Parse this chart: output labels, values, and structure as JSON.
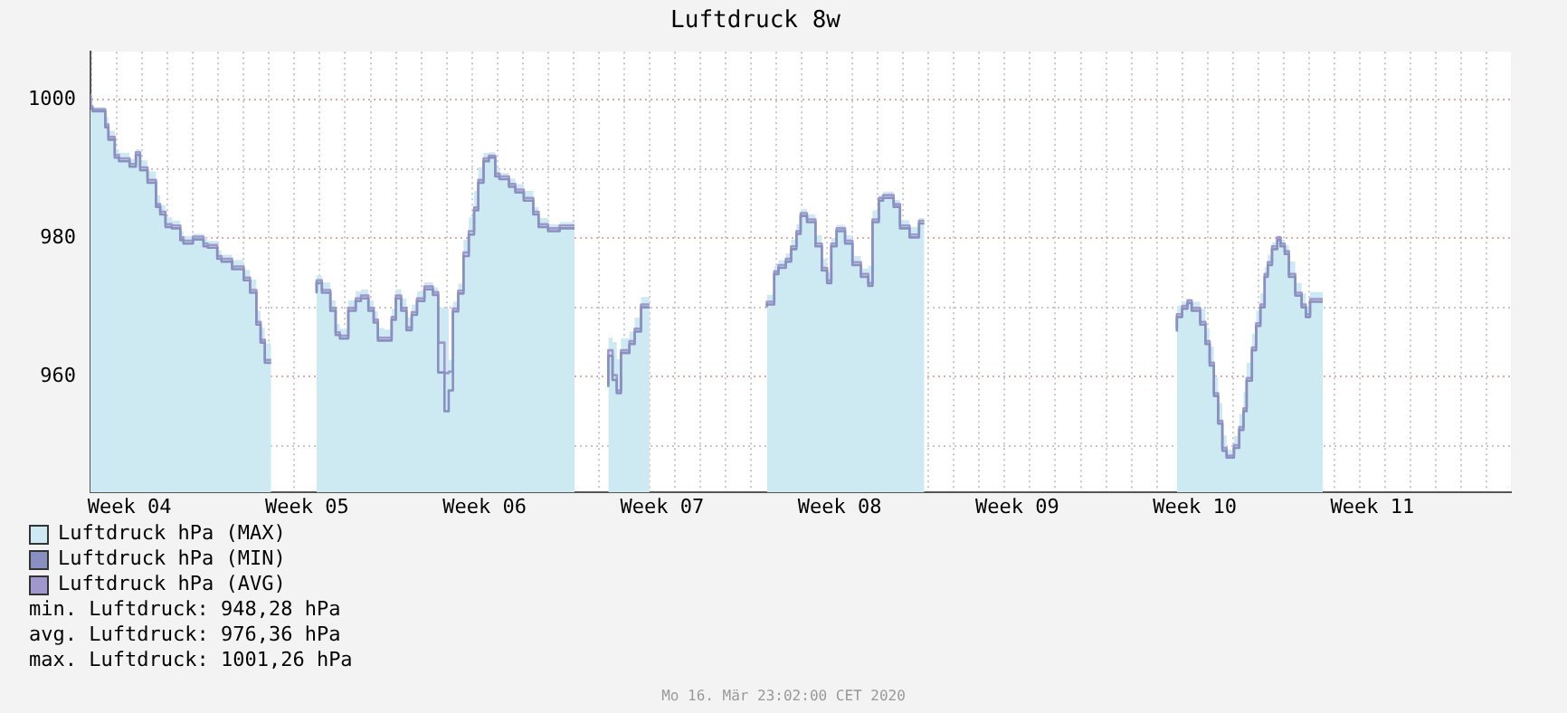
{
  "chart_data": {
    "type": "step",
    "title": "Luftdruck 8w",
    "x": [
      "2020-01-20T23:02",
      "2020-01-21T01:00",
      "2020-01-21T13:00",
      "2020-01-21T16:00",
      "2020-01-21T22:00",
      "2020-01-22T02:00",
      "2020-01-22T12:00",
      "2020-01-22T18:00",
      "2020-01-22T22:00",
      "2020-01-23T05:00",
      "2020-01-23T13:00",
      "2020-01-23T17:00",
      "2020-01-23T22:00",
      "2020-01-24T04:00",
      "2020-01-24T12:00",
      "2020-01-24T15:00",
      "2020-01-25T00:00",
      "2020-01-25T10:00",
      "2020-01-25T14:00",
      "2020-01-25T23:00",
      "2020-01-26T03:00",
      "2020-01-26T13:00",
      "2020-01-27T00:00",
      "2020-01-27T06:00",
      "2020-01-27T12:00",
      "2020-01-27T16:00",
      "2020-01-27T20:00",
      "2020-01-27T23:00",
      "2020-01-28T02:00",
      "2020-01-28T11:00",
      "2020-01-29T21:00",
      "2020-01-30T02:00",
      "2020-01-30T10:00",
      "2020-01-30T15:00",
      "2020-01-30T19:00",
      "2020-01-31T03:00",
      "2020-01-31T10:00",
      "2020-01-31T15:00",
      "2020-01-31T22:00",
      "2020-02-01T03:00",
      "2020-02-01T07:00",
      "2020-02-01T13:00",
      "2020-02-01T20:00",
      "2020-02-02T00:00",
      "2020-02-02T05:00",
      "2020-02-02T10:00",
      "2020-02-02T15:00",
      "2020-02-02T20:00",
      "2020-02-03T03:00",
      "2020-02-03T11:00",
      "2020-02-03T16:00",
      "2020-02-03T22:00",
      "2020-02-04T02:00",
      "2020-02-04T06:00",
      "2020-02-04T11:00",
      "2020-02-04T16:00",
      "2020-02-04T21:00",
      "2020-02-05T02:00",
      "2020-02-05T06:00",
      "2020-02-05T11:00",
      "2020-02-05T16:00",
      "2020-02-05T22:00",
      "2020-02-06T02:00",
      "2020-02-06T11:00",
      "2020-02-06T17:00",
      "2020-02-07T01:00",
      "2020-02-07T10:00",
      "2020-02-07T15:00",
      "2020-02-08T00:00",
      "2020-02-08T11:00",
      "2020-02-08T23:00",
      "2020-02-09T01:00",
      "2020-02-09T11:00",
      "2020-02-10T09:00",
      "2020-02-10T13:00",
      "2020-02-10T17:00",
      "2020-02-10T21:00",
      "2020-02-11T05:00",
      "2020-02-11T10:00",
      "2020-02-11T16:00",
      "2020-02-11T20:00",
      "2020-02-12T00:00",
      "2020-02-13T23:00",
      "2020-02-16T15:00",
      "2020-02-16T22:00",
      "2020-02-17T02:00",
      "2020-02-17T09:00",
      "2020-02-17T14:00",
      "2020-02-17T19:00",
      "2020-02-17T23:00",
      "2020-02-18T05:00",
      "2020-02-18T13:00",
      "2020-02-18T19:00",
      "2020-02-19T00:00",
      "2020-02-19T04:00",
      "2020-02-19T09:00",
      "2020-02-19T17:00",
      "2020-02-20T00:00",
      "2020-02-20T08:00",
      "2020-02-20T15:00",
      "2020-02-20T19:00",
      "2020-02-21T01:00",
      "2020-02-21T05:00",
      "2020-02-21T15:00",
      "2020-02-21T21:00",
      "2020-02-22T06:00",
      "2020-02-22T15:00",
      "2020-02-22T18:00",
      "2020-02-22T20:00",
      "2020-02-26T23:00",
      "2020-03-03T19:00",
      "2020-03-04T00:00",
      "2020-03-04T05:00",
      "2020-03-04T09:00",
      "2020-03-04T17:00",
      "2020-03-04T22:00",
      "2020-03-05T02:00",
      "2020-03-05T06:00",
      "2020-03-05T10:00",
      "2020-03-05T14:00",
      "2020-03-05T18:00",
      "2020-03-06T01:00",
      "2020-03-06T06:00",
      "2020-03-06T10:00",
      "2020-03-06T13:00",
      "2020-03-06T18:00",
      "2020-03-06T22:00",
      "2020-03-07T02:00",
      "2020-03-07T06:00",
      "2020-03-07T09:00",
      "2020-03-07T13:00",
      "2020-03-07T18:00",
      "2020-03-07T21:00",
      "2020-03-08T01:00",
      "2020-03-08T05:00",
      "2020-03-08T11:00",
      "2020-03-08T17:00",
      "2020-03-08T21:00",
      "2020-03-09T01:00",
      "2020-03-09T07:00",
      "2020-03-09T13:00"
    ],
    "series": [
      {
        "name": "Luftdruck hPa (MAX)",
        "type": "area",
        "color": "#cdeaf2",
        "values": [
          1001.3,
          999.6,
          998.9,
          997.5,
          995.5,
          992.8,
          992.3,
          991.4,
          992.8,
          991.2,
          989.6,
          986.2,
          984.7,
          983.0,
          982.5,
          981.0,
          980.3,
          980.6,
          980.0,
          979.6,
          978.2,
          977.6,
          976.8,
          975.4,
          974.0,
          969.5,
          967.0,
          964.8,
          964.8,
          null,
          974.0,
          974.6,
          973.6,
          971.0,
          967.6,
          966.9,
          971.0,
          972.3,
          972.6,
          971.0,
          969.4,
          967.0,
          966.8,
          969.8,
          972.6,
          971.3,
          968.5,
          970.4,
          972.3,
          973.6,
          972.9,
          970.0,
          969.8,
          962.4,
          970.8,
          973.4,
          979.8,
          983.0,
          986.8,
          990.2,
          992.3,
          992.4,
          990.2,
          989.4,
          988.6,
          987.8,
          986.8,
          984.5,
          982.9,
          982.0,
          982.3,
          982.3,
          null,
          962.0,
          965.6,
          965.0,
          962.5,
          965.5,
          966.5,
          968.5,
          971.5,
          971.5,
          null,
          971.3,
          971.8,
          976.0,
          976.8,
          977.8,
          979.8,
          982.0,
          984.2,
          983.4,
          980.4,
          977.0,
          975.0,
          980.0,
          981.9,
          980.4,
          977.4,
          975.6,
          976.0,
          984.0,
          986.2,
          986.7,
          985.5,
          982.6,
          981.6,
          982.9,
          982.9,
          null,
          968.5,
          970.2,
          970.8,
          971.2,
          970.8,
          969.8,
          967.0,
          964.3,
          960.0,
          956.2,
          951.5,
          949.4,
          951.4,
          954.6,
          957.8,
          962.0,
          966.2,
          969.5,
          972.0,
          975.8,
          977.6,
          979.4,
          980.3,
          979.8,
          979.0,
          976.6,
          973.5,
          972.0,
          970.0,
          972.2,
          972.2
        ]
      },
      {
        "name": "Luftdruck hPa (MIN)",
        "color": "#8890c0",
        "values": [
          1000.4,
          998.7,
          998.3,
          996.0,
          994.2,
          991.6,
          991.1,
          990.3,
          992.0,
          989.8,
          988.0,
          984.5,
          983.4,
          981.6,
          981.4,
          979.7,
          979.2,
          979.8,
          978.8,
          978.6,
          977.0,
          976.6,
          975.5,
          973.9,
          972.1,
          967.5,
          964.9,
          962.0,
          962.0,
          null,
          972.0,
          973.5,
          972.1,
          969.5,
          966.0,
          965.5,
          969.5,
          970.9,
          971.3,
          969.5,
          967.8,
          965.2,
          965.2,
          968.2,
          971.3,
          969.5,
          966.7,
          968.9,
          970.9,
          972.6,
          971.8,
          960.6,
          955.0,
          958.0,
          969.4,
          972.0,
          977.4,
          980.5,
          984.0,
          988.0,
          991.1,
          991.6,
          988.9,
          988.5,
          987.4,
          986.6,
          985.4,
          983.4,
          981.6,
          981.0,
          981.4,
          981.4,
          null,
          958.5,
          963.0,
          959.5,
          957.6,
          963.4,
          964.7,
          966.5,
          970.0,
          970.0,
          null,
          970.0,
          970.4,
          974.8,
          975.7,
          976.6,
          978.4,
          980.6,
          983.2,
          982.3,
          978.8,
          975.3,
          973.5,
          978.8,
          981.0,
          979.2,
          976.1,
          974.4,
          973.1,
          982.3,
          985.4,
          985.8,
          984.5,
          981.4,
          980.1,
          982.1,
          982.1,
          null,
          966.5,
          968.6,
          969.8,
          970.6,
          969.5,
          967.5,
          964.7,
          961.6,
          957.2,
          953.2,
          949.3,
          948.3,
          949.7,
          952.3,
          955.0,
          959.4,
          963.8,
          967.3,
          970.0,
          974.4,
          976.1,
          978.4,
          979.7,
          978.8,
          977.7,
          974.4,
          971.7,
          970.0,
          968.6,
          970.8,
          970.8
        ]
      },
      {
        "name": "Luftdruck hPa (AVG)",
        "color": "#a098cc",
        "values": [
          1000.8,
          999.0,
          998.6,
          996.4,
          994.6,
          992.0,
          991.5,
          990.7,
          992.4,
          990.2,
          988.4,
          984.9,
          983.8,
          982.0,
          981.8,
          980.1,
          979.6,
          980.2,
          979.2,
          979.0,
          977.4,
          977.0,
          975.9,
          974.3,
          972.5,
          967.9,
          965.3,
          962.4,
          962.4,
          null,
          972.3,
          973.9,
          972.5,
          969.9,
          966.4,
          965.9,
          969.9,
          971.3,
          971.7,
          969.9,
          968.2,
          965.6,
          965.6,
          968.6,
          971.7,
          969.9,
          967.1,
          969.3,
          971.3,
          973.0,
          972.2,
          964.9,
          960.5,
          960.7,
          969.8,
          972.4,
          977.9,
          981.0,
          984.4,
          988.4,
          991.5,
          991.9,
          989.3,
          988.9,
          987.8,
          987.0,
          985.8,
          983.8,
          982.0,
          981.4,
          981.8,
          981.8,
          null,
          958.9,
          963.8,
          960.2,
          958.0,
          963.8,
          965.1,
          966.9,
          970.4,
          970.4,
          null,
          970.4,
          970.8,
          975.2,
          976.1,
          977.0,
          978.8,
          981.0,
          983.6,
          982.7,
          979.2,
          975.7,
          973.9,
          979.2,
          981.4,
          979.6,
          976.5,
          974.8,
          973.5,
          982.7,
          985.8,
          986.2,
          984.9,
          981.8,
          980.5,
          982.5,
          982.5,
          null,
          966.9,
          969.0,
          970.2,
          971.0,
          969.9,
          967.9,
          965.1,
          962.0,
          957.6,
          953.6,
          949.7,
          948.6,
          950.1,
          952.7,
          955.4,
          959.8,
          964.2,
          967.7,
          970.4,
          974.8,
          976.5,
          978.8,
          980.1,
          979.2,
          978.1,
          974.8,
          972.1,
          970.4,
          969.0,
          971.2,
          971.2
        ]
      }
    ],
    "xlim": [
      "2020-01-20T23:02",
      "2020-03-16T23:02"
    ],
    "xticks": [
      {
        "value": "2020-01-21T00:00",
        "label": null
      },
      {
        "value": "2020-01-22T00:00",
        "label": null
      },
      {
        "value": "2020-01-22T12:00",
        "label": "Week 04"
      },
      {
        "value": "2020-01-23T00:00",
        "label": null
      },
      {
        "value": "2020-01-24T00:00",
        "label": null
      },
      {
        "value": "2020-01-25T00:00",
        "label": null
      },
      {
        "value": "2020-01-26T00:00",
        "label": null
      },
      {
        "value": "2020-01-27T00:00",
        "label": null
      },
      {
        "value": "2020-01-28T00:00",
        "label": null
      },
      {
        "value": "2020-01-29T00:00",
        "label": null
      },
      {
        "value": "2020-01-29T12:00",
        "label": "Week 05"
      },
      {
        "value": "2020-01-30T00:00",
        "label": null
      },
      {
        "value": "2020-01-31T00:00",
        "label": null
      },
      {
        "value": "2020-02-01T00:00",
        "label": null
      },
      {
        "value": "2020-02-02T00:00",
        "label": null
      },
      {
        "value": "2020-02-03T00:00",
        "label": null
      },
      {
        "value": "2020-02-04T00:00",
        "label": null
      },
      {
        "value": "2020-02-05T00:00",
        "label": null
      },
      {
        "value": "2020-02-05T12:00",
        "label": "Week 06"
      },
      {
        "value": "2020-02-06T00:00",
        "label": null
      },
      {
        "value": "2020-02-07T00:00",
        "label": null
      },
      {
        "value": "2020-02-08T00:00",
        "label": null
      },
      {
        "value": "2020-02-09T00:00",
        "label": null
      },
      {
        "value": "2020-02-10T00:00",
        "label": null
      },
      {
        "value": "2020-02-11T00:00",
        "label": null
      },
      {
        "value": "2020-02-12T00:00",
        "label": null
      },
      {
        "value": "2020-02-12T12:00",
        "label": "Week 07"
      },
      {
        "value": "2020-02-13T00:00",
        "label": null
      },
      {
        "value": "2020-02-14T00:00",
        "label": null
      },
      {
        "value": "2020-02-15T00:00",
        "label": null
      },
      {
        "value": "2020-02-16T00:00",
        "label": null
      },
      {
        "value": "2020-02-17T00:00",
        "label": null
      },
      {
        "value": "2020-02-18T00:00",
        "label": null
      },
      {
        "value": "2020-02-19T00:00",
        "label": null
      },
      {
        "value": "2020-02-19T12:00",
        "label": "Week 08"
      },
      {
        "value": "2020-02-20T00:00",
        "label": null
      },
      {
        "value": "2020-02-21T00:00",
        "label": null
      },
      {
        "value": "2020-02-22T00:00",
        "label": null
      },
      {
        "value": "2020-02-23T00:00",
        "label": null
      },
      {
        "value": "2020-02-24T00:00",
        "label": null
      },
      {
        "value": "2020-02-25T00:00",
        "label": null
      },
      {
        "value": "2020-02-26T00:00",
        "label": null
      },
      {
        "value": "2020-02-26T12:00",
        "label": "Week 09"
      },
      {
        "value": "2020-02-27T00:00",
        "label": null
      },
      {
        "value": "2020-02-28T00:00",
        "label": null
      },
      {
        "value": "2020-02-29T00:00",
        "label": null
      },
      {
        "value": "2020-03-01T00:00",
        "label": null
      },
      {
        "value": "2020-03-02T00:00",
        "label": null
      },
      {
        "value": "2020-03-03T00:00",
        "label": null
      },
      {
        "value": "2020-03-04T00:00",
        "label": null
      },
      {
        "value": "2020-03-04T12:00",
        "label": "Week 10"
      },
      {
        "value": "2020-03-05T00:00",
        "label": null
      },
      {
        "value": "2020-03-06T00:00",
        "label": null
      },
      {
        "value": "2020-03-07T00:00",
        "label": null
      },
      {
        "value": "2020-03-08T00:00",
        "label": null
      },
      {
        "value": "2020-03-09T00:00",
        "label": null
      },
      {
        "value": "2020-03-10T00:00",
        "label": null
      },
      {
        "value": "2020-03-11T00:00",
        "label": null
      },
      {
        "value": "2020-03-11T12:00",
        "label": "Week 11"
      },
      {
        "value": "2020-03-12T00:00",
        "label": null
      },
      {
        "value": "2020-03-13T00:00",
        "label": null
      },
      {
        "value": "2020-03-14T00:00",
        "label": null
      },
      {
        "value": "2020-03-15T00:00",
        "label": null
      },
      {
        "value": "2020-03-16T00:00",
        "label": null
      }
    ],
    "ylim": [
      943.3,
      1006.9
    ],
    "yticks": [
      {
        "value": 950,
        "label": null
      },
      960,
      {
        "value": 970,
        "label": null
      },
      980,
      {
        "value": 990,
        "label": null
      },
      1000
    ],
    "grid": true,
    "legend": "bottom left",
    "annotations": [
      "min. Luftdruck: 948,28 hPa",
      "avg. Luftdruck: 976,36 hPa",
      "max. Luftdruck: 1001,26 hPa",
      "Mo 16. Mär 23:02:00 CET 2020"
    ]
  }
}
